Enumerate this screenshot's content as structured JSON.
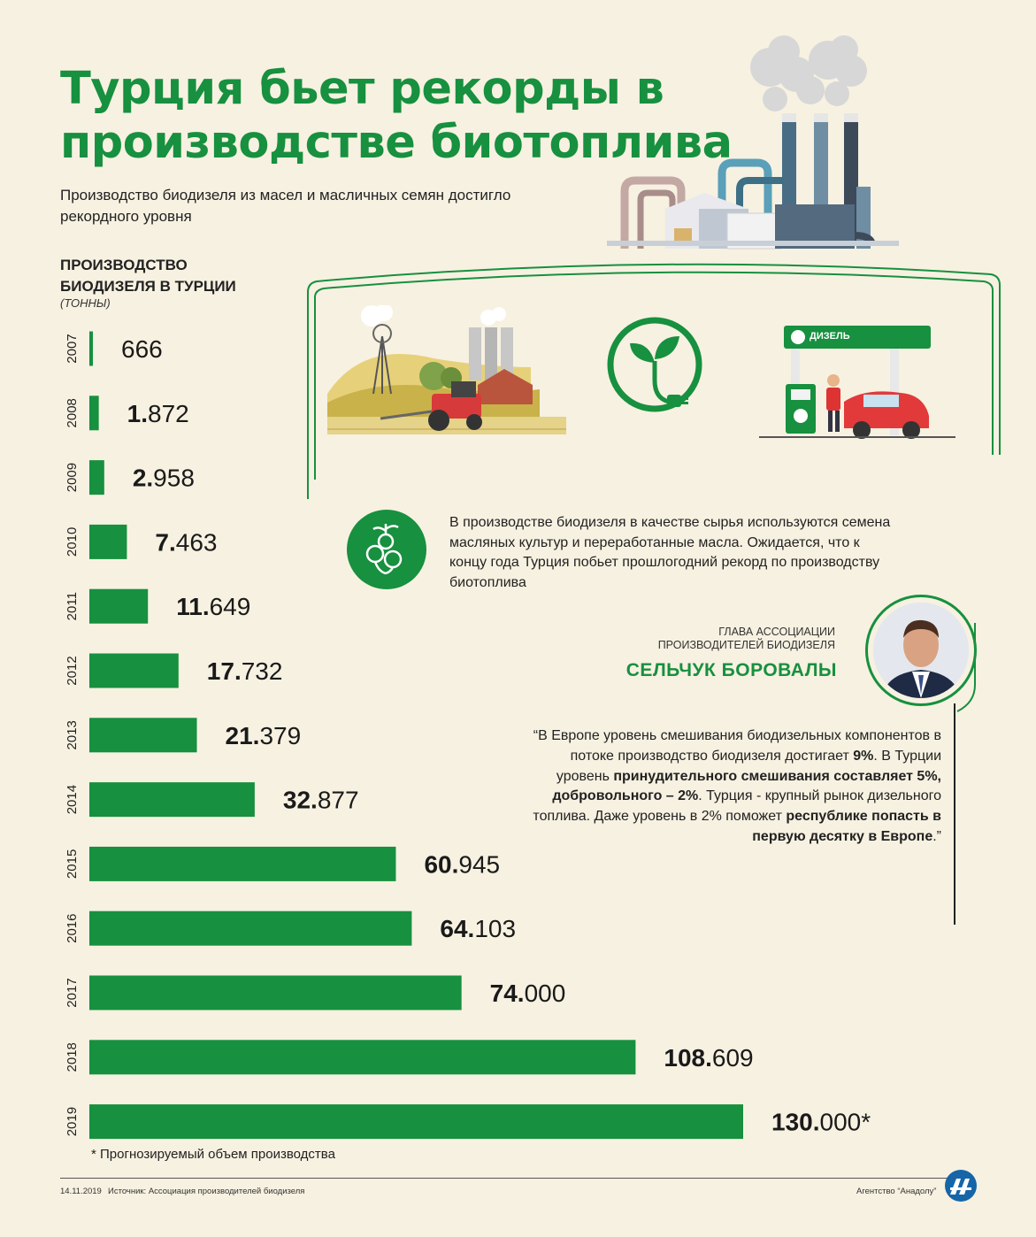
{
  "header": {
    "title_line1": "Турция бьет рекорды в",
    "title_line2": "производстве биотоплива",
    "subtitle": "Производство биодизеля из масел и масличных семян достигло рекордного уровня"
  },
  "chart_heading": {
    "line1": "ПРОИЗВОДСТВО",
    "line2": "БИОДИЗЕЛЯ В ТУРЦИИ",
    "unit": "(ТОННЫ)"
  },
  "chart_data": {
    "type": "bar",
    "orientation": "horizontal",
    "categories": [
      "2007",
      "2008",
      "2009",
      "2010",
      "2011",
      "2012",
      "2013",
      "2014",
      "2015",
      "2016",
      "2017",
      "2018",
      "2019"
    ],
    "values": [
      666,
      1872,
      2958,
      7463,
      11649,
      17732,
      21379,
      32877,
      60945,
      64103,
      74000,
      108609,
      130000
    ],
    "value_labels": [
      {
        "bold": "",
        "rest": "666"
      },
      {
        "bold": "1.",
        "rest": "872"
      },
      {
        "bold": "2.",
        "rest": "958"
      },
      {
        "bold": "7.",
        "rest": "463"
      },
      {
        "bold": "11.",
        "rest": "649"
      },
      {
        "bold": "17.",
        "rest": "732"
      },
      {
        "bold": "21.",
        "rest": "379"
      },
      {
        "bold": "32.",
        "rest": "877"
      },
      {
        "bold": "60.",
        "rest": "945"
      },
      {
        "bold": "64.",
        "rest": "103"
      },
      {
        "bold": "74.",
        "rest": "000"
      },
      {
        "bold": "108.",
        "rest": "609"
      },
      {
        "bold": "130.",
        "rest": "000*"
      }
    ],
    "bar_color": "#17903f",
    "grid": false
  },
  "footnote": "* Прогнозируемый объем производства",
  "info": {
    "text": "В производстве биодизеля в качестве сырья используются семена масляных культур и переработанные масла. Ожидается, что к концу года Турция побьет прошлогодний рекорд по производству биотоплива"
  },
  "fuel_station": {
    "sign_label": "ДИЗЕЛЬ"
  },
  "person": {
    "role_line1": "ГЛАВА АССОЦИАЦИИ",
    "role_line2": "ПРОИЗВОДИТЕЛЕЙ БИОДИЗЕЛЯ",
    "name": "СЕЛЬЧУК БОРОВАЛЫ"
  },
  "quote": {
    "p1": "“В Европе уровень смешивания биодизельных компонентов в потоке производство биодизеля достигает ",
    "b1": "9%",
    "p2": ".  В Турции уровень ",
    "b2": "принудительного смешивания составляет 5%, добровольного – 2%",
    "p3": ". Турция - крупный рынок дизельного топлива. Даже уровень в 2% поможет ",
    "b3": "республике попасть в первую десятку в Европе",
    "p4": ".”"
  },
  "footer": {
    "date": "14.11.2019",
    "source": "Источник: Ассоциация производителей биодизеля",
    "agency": "Агентство “Анадолу”"
  },
  "colors": {
    "accent": "#17903f",
    "background": "#f7f1e1"
  },
  "icons": [
    "factory-illustration",
    "farm-illustration",
    "bio-leaf-plug-icon",
    "fuel-station-illustration",
    "rapeseed-flower-icon",
    "aa-logo-icon"
  ]
}
